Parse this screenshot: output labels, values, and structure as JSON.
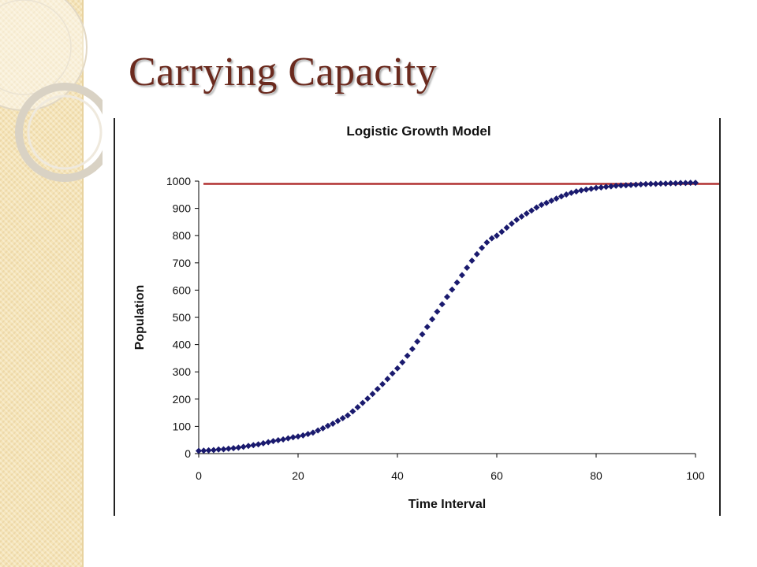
{
  "slide": {
    "title": "Carrying Capacity"
  },
  "colors": {
    "title": "#6b2a1e",
    "band": "#f5e4b8",
    "series": "#1a1a6e",
    "capacity_line": "#b03030"
  },
  "chart_data": {
    "type": "scatter",
    "title": "Logistic Growth Model",
    "xlabel": "Time Interval",
    "ylabel": "Population",
    "xlim": [
      0,
      100
    ],
    "ylim": [
      0,
      1000
    ],
    "x_ticks": [
      0,
      20,
      40,
      60,
      80,
      100
    ],
    "y_ticks": [
      0,
      100,
      200,
      300,
      400,
      500,
      600,
      700,
      800,
      900,
      1000
    ],
    "grid": false,
    "legend": "none",
    "marker": "diamond",
    "carrying_capacity": 990,
    "series": [
      {
        "x": [
          0,
          1,
          2,
          3,
          4,
          5,
          6,
          7,
          8,
          9,
          10,
          11,
          12,
          13,
          14,
          15,
          16,
          17,
          18,
          19,
          20,
          21,
          22,
          23,
          24,
          25,
          26,
          27,
          28,
          29,
          30,
          31,
          32,
          33,
          34,
          35,
          36,
          37,
          38,
          39,
          40,
          41,
          42,
          43,
          44,
          45,
          46,
          47,
          48,
          49,
          50,
          51,
          52,
          53,
          54,
          55,
          56,
          57,
          58,
          59,
          60,
          61,
          62,
          63,
          64,
          65,
          66,
          67,
          68,
          69,
          70,
          71,
          72,
          73,
          74,
          75,
          76,
          77,
          78,
          79,
          80,
          81,
          82,
          83,
          84,
          85,
          86,
          87,
          88,
          89,
          90,
          91,
          92,
          93,
          94,
          95,
          96,
          97,
          98,
          99,
          100
        ],
        "values": [
          10,
          11,
          12,
          13,
          15,
          16,
          18,
          20,
          22,
          25,
          28,
          31,
          34,
          38,
          42,
          46,
          49,
          52,
          56,
          60,
          63,
          67,
          72,
          77,
          85,
          93,
          102,
          110,
          120,
          130,
          140,
          155,
          170,
          186,
          202,
          219,
          237,
          255,
          274,
          294,
          313,
          335,
          359,
          384,
          411,
          438,
          465,
          493,
          521,
          548,
          575,
          602,
          628,
          655,
          682,
          708,
          732,
          755,
          775,
          790,
          800,
          814,
          829,
          844,
          858,
          870,
          881,
          892,
          903,
          913,
          920,
          928,
          936,
          944,
          951,
          957,
          962,
          966,
          969,
          972,
          975,
          977,
          979,
          981,
          983,
          984,
          985,
          986,
          987,
          988,
          989,
          990,
          990,
          991,
          991,
          992,
          992,
          993,
          993,
          994,
          994
        ]
      }
    ]
  }
}
